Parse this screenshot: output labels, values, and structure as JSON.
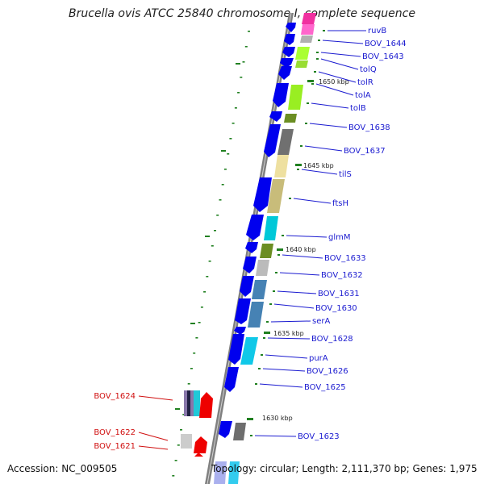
{
  "title": "Brucella ovis ATCC 25840 chromosome I, complete sequence",
  "footer": {
    "accession": "Accession: NC_009505",
    "summary": "Topology: circular; Length: 2,111,370 bp; Genes: 1,975"
  },
  "scale_labels": [
    "1650 kbp",
    "1645 kbp",
    "1640 kbp",
    "1635 kbp",
    "1630 kbp"
  ],
  "gene_labels": [
    "ruvB",
    "BOV_1644",
    "BOV_1643",
    "tolQ",
    "tolR",
    "tolA",
    "tolB",
    "BOV_1638",
    "BOV_1637",
    "tilS",
    "ftsH",
    "glmM",
    "BOV_1633",
    "BOV_1632",
    "BOV_1631",
    "BOV_1630",
    "serA",
    "BOV_1628",
    "purA",
    "BOV_1626",
    "BOV_1625",
    "BOV_1623"
  ],
  "reverse_gene_labels": [
    "BOV_1624",
    "BOV_1622",
    "BOV_1621"
  ],
  "colors": {
    "backbone": "#808080",
    "cds_forward": "#0000ee",
    "cds_reverse": "#ee0000",
    "tick": "#208020",
    "label_forward": "#1a1ad0",
    "label_reverse": "#d01010"
  }
}
